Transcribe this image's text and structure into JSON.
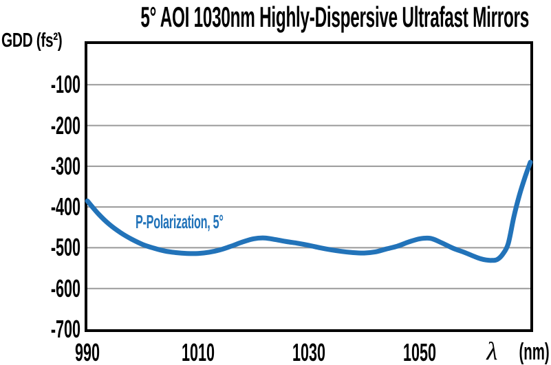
{
  "title": "5° AOI 1030nm Highly-Dispersive Ultrafast Mirrors",
  "y_axis": {
    "label": "GDD (fs²)"
  },
  "x_axis": {
    "symbol": "λ",
    "unit": "(nm)"
  },
  "series_label": "P-Polarization, 5°",
  "colors": {
    "curve": "#2273B9",
    "grid": "#999999",
    "border": "#000000",
    "text": "#000000",
    "background": "#FFFFFF"
  },
  "chart_data": {
    "type": "line",
    "title": "5° AOI 1030nm Highly-Dispersive Ultrafast Mirrors",
    "xlabel": "λ (nm)",
    "ylabel": "GDD (fs²)",
    "xlim": [
      990,
      1070
    ],
    "ylim": [
      -700,
      0
    ],
    "xticks": [
      990,
      1010,
      1030,
      1050
    ],
    "yticks": [
      -100,
      -200,
      -300,
      -400,
      -500,
      -600,
      -700
    ],
    "grid": "horizontal",
    "legend_position": "inside-plot-upper-left",
    "series": [
      {
        "name": "P-Polarization, 5°",
        "color": "#2273B9",
        "x": [
          990,
          992,
          994,
          996,
          998,
          1000,
          1002,
          1004,
          1006,
          1008,
          1010,
          1012,
          1014,
          1016,
          1018,
          1020,
          1022,
          1024,
          1026,
          1028,
          1030,
          1032,
          1034,
          1036,
          1038,
          1040,
          1042,
          1044,
          1046,
          1048,
          1050,
          1052,
          1054,
          1056,
          1058,
          1060,
          1061,
          1062,
          1063,
          1064,
          1065,
          1066,
          1067,
          1068,
          1069,
          1070
        ],
        "y": [
          -385,
          -417,
          -443,
          -463,
          -479,
          -492,
          -501,
          -508,
          -512,
          -514,
          -514,
          -511,
          -505,
          -496,
          -486,
          -478,
          -476,
          -480,
          -485,
          -489,
          -494,
          -500,
          -505,
          -509,
          -512,
          -513,
          -510,
          -503,
          -496,
          -486,
          -478,
          -477,
          -488,
          -501,
          -511,
          -522,
          -527,
          -530,
          -531,
          -529,
          -516,
          -490,
          -425,
          -372,
          -328,
          -290
        ]
      }
    ]
  }
}
